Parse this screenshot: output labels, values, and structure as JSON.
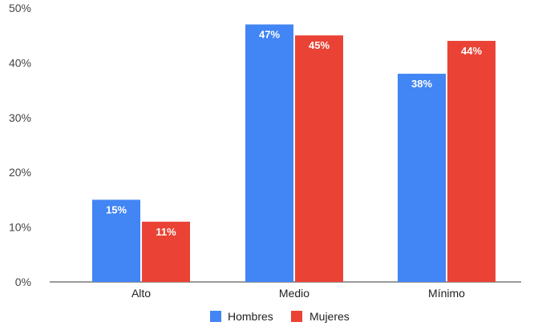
{
  "chart_data": {
    "type": "bar",
    "categories": [
      "Alto",
      "Medio",
      "Mínimo"
    ],
    "series": [
      {
        "name": "Hombres",
        "values": [
          15,
          47,
          38
        ],
        "labels": [
          "15%",
          "47%",
          "38%"
        ],
        "color": "#4285f4"
      },
      {
        "name": "Mujeres",
        "values": [
          11,
          45,
          44
        ],
        "labels": [
          "11%",
          "45%",
          "44%"
        ],
        "color": "#ea4335"
      }
    ],
    "ylim": [
      0,
      50
    ],
    "yticks": [
      0,
      10,
      20,
      30,
      40,
      50
    ],
    "ytick_labels": [
      "0%",
      "10%",
      "20%",
      "30%",
      "40%",
      "50%"
    ],
    "xlabel": "",
    "ylabel": "",
    "grid": false,
    "legend_position": "bottom"
  }
}
